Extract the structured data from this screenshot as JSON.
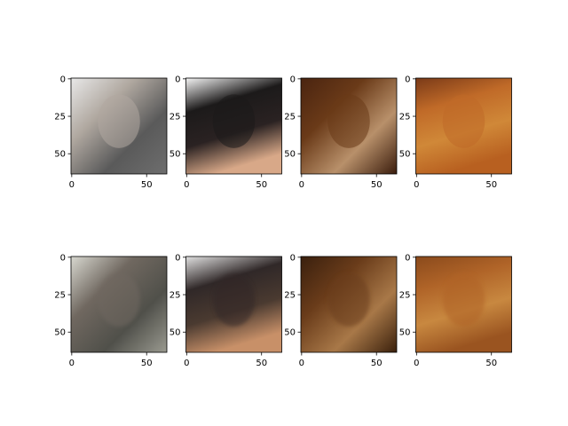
{
  "chart_data": [
    {
      "type": "image",
      "xlim": [
        -0.5,
        63.5
      ],
      "ylim": [
        63.5,
        -0.5
      ],
      "xticks": [
        0,
        50
      ],
      "yticks": [
        0,
        25,
        50
      ]
    },
    {
      "type": "image",
      "xlim": [
        -0.5,
        63.5
      ],
      "ylim": [
        63.5,
        -0.5
      ],
      "xticks": [
        0,
        50
      ],
      "yticks": [
        0,
        25,
        50
      ]
    },
    {
      "type": "image",
      "xlim": [
        -0.5,
        63.5
      ],
      "ylim": [
        63.5,
        -0.5
      ],
      "xticks": [
        0,
        50
      ],
      "yticks": [
        0,
        25,
        50
      ]
    },
    {
      "type": "image",
      "xlim": [
        -0.5,
        63.5
      ],
      "ylim": [
        63.5,
        -0.5
      ],
      "xticks": [
        0,
        50
      ],
      "yticks": [
        0,
        25,
        50
      ]
    },
    {
      "type": "image",
      "xlim": [
        -0.5,
        63.5
      ],
      "ylim": [
        63.5,
        -0.5
      ],
      "xticks": [
        0,
        50
      ],
      "yticks": [
        0,
        25,
        50
      ]
    },
    {
      "type": "image",
      "xlim": [
        -0.5,
        63.5
      ],
      "ylim": [
        63.5,
        -0.5
      ],
      "xticks": [
        0,
        50
      ],
      "yticks": [
        0,
        25,
        50
      ]
    },
    {
      "type": "image",
      "xlim": [
        -0.5,
        63.5
      ],
      "ylim": [
        63.5,
        -0.5
      ],
      "xticks": [
        0,
        50
      ],
      "yticks": [
        0,
        25,
        50
      ]
    },
    {
      "type": "image",
      "xlim": [
        -0.5,
        63.5
      ],
      "ylim": [
        63.5,
        -0.5
      ],
      "xticks": [
        0,
        50
      ],
      "yticks": [
        0,
        25,
        50
      ]
    }
  ]
}
